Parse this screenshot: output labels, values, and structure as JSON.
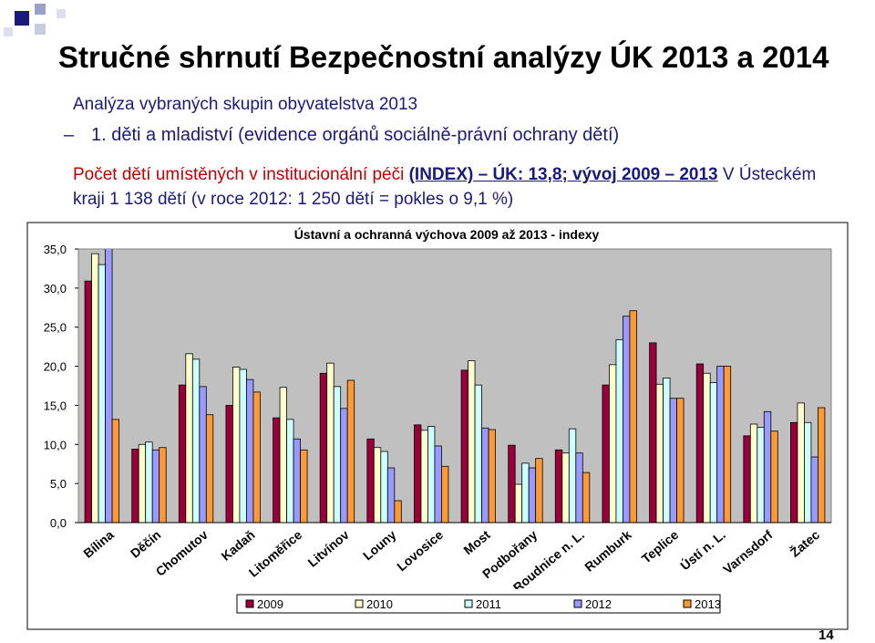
{
  "header": {
    "title": "Stručné shrnutí Bezpečnostní analýzy ÚK 2013 a 2014"
  },
  "subtitle": "Analýza vybraných skupin obyvatelstva 2013",
  "bullet": {
    "marker": "–",
    "text": "1. děti a mladiství (evidence orgánů sociálně-právní ochrany dětí)"
  },
  "paragraph": {
    "lead": "Počet dětí umístěných v institucionální péči",
    "index": "(INDEX) – ÚK: 13,8; vývoj 2009 – 2013",
    "rest": "V Ústeckém kraji 1 138 dětí (v roce 2012: 1 250 dětí = pokles o 9,1 %)"
  },
  "page_number": "14",
  "chart_data": {
    "type": "bar",
    "title": "Ústavní a ochranná výchova 2009 až 2013 - indexy",
    "categories": [
      "Bílina",
      "Děčín",
      "Chomutov",
      "Kadaň",
      "Litoměřice",
      "Litvínov",
      "Louny",
      "Lovosice",
      "Most",
      "Podbořany",
      "Roudnice n. L.",
      "Rumburk",
      "Teplice",
      "Ústí n. L.",
      "Varnsdorf",
      "Žatec"
    ],
    "series": [
      {
        "name": "2009",
        "color": "#99003a",
        "values": [
          30.9,
          9.4,
          17.6,
          15.0,
          13.4,
          19.1,
          10.7,
          12.5,
          19.5,
          9.9,
          9.3,
          17.6,
          23.0,
          20.3,
          11.1,
          12.8
        ]
      },
      {
        "name": "2010",
        "color": "#ffffcc",
        "values": [
          34.4,
          10.0,
          21.6,
          19.9,
          17.3,
          20.4,
          9.6,
          11.8,
          20.7,
          4.9,
          8.9,
          20.2,
          17.7,
          19.1,
          12.6,
          15.3
        ]
      },
      {
        "name": "2011",
        "color": "#ccffff",
        "values": [
          33.0,
          10.3,
          20.9,
          19.6,
          13.2,
          17.4,
          9.1,
          12.3,
          17.6,
          7.6,
          12.0,
          23.4,
          18.5,
          17.9,
          12.2,
          12.8
        ]
      },
      {
        "name": "2012",
        "color": "#9999ff",
        "values": [
          36.0,
          9.3,
          17.4,
          18.3,
          10.7,
          14.6,
          7.0,
          9.8,
          12.1,
          7.0,
          8.9,
          26.4,
          15.9,
          20.0,
          14.2,
          8.4
        ]
      },
      {
        "name": "2013",
        "color": "#ff9933",
        "values": [
          13.2,
          9.6,
          13.8,
          16.7,
          9.3,
          18.2,
          2.8,
          7.2,
          11.9,
          8.2,
          6.4,
          27.1,
          15.9,
          20.0,
          11.7,
          14.7
        ]
      }
    ],
    "ylim": [
      0,
      35
    ],
    "yticks": [
      {
        "value": 0,
        "label": "0,0"
      },
      {
        "value": 5,
        "label": "5,0"
      },
      {
        "value": 10,
        "label": "10,0"
      },
      {
        "value": 15,
        "label": "15,0"
      },
      {
        "value": 20,
        "label": "20,0"
      },
      {
        "value": 25,
        "label": "25,0"
      },
      {
        "value": 30,
        "label": "30,0"
      },
      {
        "value": 35,
        "label": "35,0"
      }
    ],
    "legend": "bottom"
  }
}
